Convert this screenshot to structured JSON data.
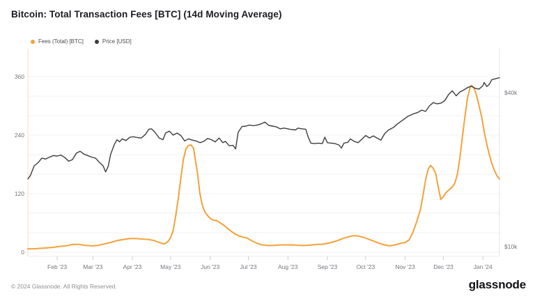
{
  "title": "Bitcoin: Total Transaction Fees [BTC] (14d Moving Average)",
  "legend": [
    {
      "label": "Fees (Total) [BTC]",
      "color": "#f4a139"
    },
    {
      "label": "Price [USD]",
      "color": "#3c3c3c"
    }
  ],
  "footer": {
    "copyright": "© 2024 Glassnode. All Rights Reserved.",
    "logo": "glassnode"
  },
  "chart_data": {
    "type": "line",
    "title": "Bitcoin: Total Transaction Fees [BTC] (14d Moving Average)",
    "grid": "horizontal-only",
    "legend_position": "top-left",
    "x_range": [
      "2023-01-09",
      "2024-01-14"
    ],
    "x_ticks": [
      {
        "label": "Feb '23",
        "date": "2023-02-01"
      },
      {
        "label": "Mar '23",
        "date": "2023-03-01"
      },
      {
        "label": "Apr '23",
        "date": "2023-04-01"
      },
      {
        "label": "May '23",
        "date": "2023-05-01"
      },
      {
        "label": "Jun '23",
        "date": "2023-06-01"
      },
      {
        "label": "Jul '23",
        "date": "2023-07-01"
      },
      {
        "label": "Aug '23",
        "date": "2023-08-01"
      },
      {
        "label": "Sep '23",
        "date": "2023-09-01"
      },
      {
        "label": "Oct '23",
        "date": "2023-10-01"
      },
      {
        "label": "Nov '23",
        "date": "2023-11-01"
      },
      {
        "label": "Dec '23",
        "date": "2023-12-01"
      },
      {
        "label": "Jan '24",
        "date": "2024-01-01"
      }
    ],
    "left_axis": {
      "series": "Fees (Total) [BTC]",
      "scale": "linear",
      "range": [
        0,
        420
      ],
      "ticks": [
        0,
        120,
        240,
        360
      ],
      "gridline_step": 40,
      "max_gridline": 360
    },
    "right_axis": {
      "series": "Price [USD]",
      "scale": "log",
      "ticks": [
        {
          "label": "$10k",
          "value": 10000
        },
        {
          "label": "$40k",
          "value": 40000
        }
      ]
    },
    "series": [
      {
        "id": "fees",
        "name": "Fees (Total) [BTC]",
        "color": "#f4a139",
        "axis": "left",
        "points": [
          [
            "2023-01-09",
            7
          ],
          [
            "2023-01-14",
            7
          ],
          [
            "2023-01-19",
            8
          ],
          [
            "2023-01-24",
            9
          ],
          [
            "2023-01-29",
            10
          ],
          [
            "2023-02-03",
            12
          ],
          [
            "2023-02-08",
            13
          ],
          [
            "2023-02-13",
            16
          ],
          [
            "2023-02-18",
            16
          ],
          [
            "2023-02-23",
            14
          ],
          [
            "2023-02-28",
            13
          ],
          [
            "2023-03-05",
            14
          ],
          [
            "2023-03-10",
            17
          ],
          [
            "2023-03-15",
            20
          ],
          [
            "2023-03-20",
            24
          ],
          [
            "2023-03-25",
            26
          ],
          [
            "2023-03-30",
            28
          ],
          [
            "2023-04-04",
            28
          ],
          [
            "2023-04-09",
            27
          ],
          [
            "2023-04-14",
            26
          ],
          [
            "2023-04-18",
            24
          ],
          [
            "2023-04-22",
            20
          ],
          [
            "2023-04-26",
            17
          ],
          [
            "2023-04-29",
            22
          ],
          [
            "2023-05-01",
            30
          ],
          [
            "2023-05-03",
            45
          ],
          [
            "2023-05-05",
            74
          ],
          [
            "2023-05-07",
            110
          ],
          [
            "2023-05-09",
            152
          ],
          [
            "2023-05-11",
            190
          ],
          [
            "2023-05-13",
            212
          ],
          [
            "2023-05-15",
            219
          ],
          [
            "2023-05-17",
            220
          ],
          [
            "2023-05-19",
            213
          ],
          [
            "2023-05-20",
            196
          ],
          [
            "2023-05-22",
            163
          ],
          [
            "2023-05-24",
            120
          ],
          [
            "2023-05-26",
            95
          ],
          [
            "2023-05-28",
            82
          ],
          [
            "2023-05-31",
            72
          ],
          [
            "2023-06-03",
            66
          ],
          [
            "2023-06-06",
            65
          ],
          [
            "2023-06-09",
            60
          ],
          [
            "2023-06-12",
            55
          ],
          [
            "2023-06-15",
            48
          ],
          [
            "2023-06-18",
            42
          ],
          [
            "2023-06-21",
            37
          ],
          [
            "2023-06-24",
            33
          ],
          [
            "2023-06-27",
            31
          ],
          [
            "2023-06-30",
            29
          ],
          [
            "2023-07-04",
            23
          ],
          [
            "2023-07-08",
            18
          ],
          [
            "2023-07-12",
            15
          ],
          [
            "2023-07-16",
            14
          ],
          [
            "2023-07-21",
            14
          ],
          [
            "2023-07-26",
            15
          ],
          [
            "2023-07-31",
            15
          ],
          [
            "2023-08-05",
            15
          ],
          [
            "2023-08-10",
            14
          ],
          [
            "2023-08-15",
            14
          ],
          [
            "2023-08-20",
            15
          ],
          [
            "2023-08-25",
            16
          ],
          [
            "2023-08-30",
            17
          ],
          [
            "2023-09-04",
            20
          ],
          [
            "2023-09-09",
            24
          ],
          [
            "2023-09-14",
            29
          ],
          [
            "2023-09-18",
            32
          ],
          [
            "2023-09-22",
            34
          ],
          [
            "2023-09-26",
            33
          ],
          [
            "2023-09-30",
            30
          ],
          [
            "2023-10-04",
            26
          ],
          [
            "2023-10-08",
            22
          ],
          [
            "2023-10-12",
            18
          ],
          [
            "2023-10-16",
            15
          ],
          [
            "2023-10-20",
            13
          ],
          [
            "2023-10-24",
            15
          ],
          [
            "2023-10-28",
            18
          ],
          [
            "2023-11-01",
            20
          ],
          [
            "2023-11-04",
            25
          ],
          [
            "2023-11-07",
            40
          ],
          [
            "2023-11-10",
            62
          ],
          [
            "2023-11-13",
            88
          ],
          [
            "2023-11-15",
            116
          ],
          [
            "2023-11-17",
            148
          ],
          [
            "2023-11-19",
            170
          ],
          [
            "2023-11-21",
            178
          ],
          [
            "2023-11-23",
            172
          ],
          [
            "2023-11-25",
            161
          ],
          [
            "2023-11-27",
            133
          ],
          [
            "2023-11-29",
            108
          ],
          [
            "2023-12-01",
            114
          ],
          [
            "2023-12-03",
            122
          ],
          [
            "2023-12-05",
            127
          ],
          [
            "2023-12-08",
            134
          ],
          [
            "2023-12-10",
            142
          ],
          [
            "2023-12-12",
            160
          ],
          [
            "2023-12-14",
            195
          ],
          [
            "2023-12-16",
            238
          ],
          [
            "2023-12-18",
            280
          ],
          [
            "2023-12-20",
            318
          ],
          [
            "2023-12-22",
            338
          ],
          [
            "2023-12-23",
            342
          ],
          [
            "2023-12-25",
            337
          ],
          [
            "2023-12-27",
            322
          ],
          [
            "2023-12-29",
            300
          ],
          [
            "2023-12-31",
            278
          ],
          [
            "2024-01-02",
            248
          ],
          [
            "2024-01-04",
            222
          ],
          [
            "2024-01-06",
            200
          ],
          [
            "2024-01-08",
            182
          ],
          [
            "2024-01-10",
            168
          ],
          [
            "2024-01-12",
            157
          ],
          [
            "2024-01-14",
            150
          ]
        ]
      },
      {
        "id": "price",
        "name": "Price [USD]",
        "color": "#3c3c3c",
        "axis": "right",
        "points": [
          [
            "2023-01-09",
            18400
          ],
          [
            "2023-01-11",
            19000
          ],
          [
            "2023-01-14",
            20700
          ],
          [
            "2023-01-17",
            21300
          ],
          [
            "2023-01-20",
            22200
          ],
          [
            "2023-01-23",
            22000
          ],
          [
            "2023-01-26",
            22400
          ],
          [
            "2023-01-29",
            22700
          ],
          [
            "2023-02-01",
            22600
          ],
          [
            "2023-02-04",
            22800
          ],
          [
            "2023-02-07",
            22300
          ],
          [
            "2023-02-10",
            21600
          ],
          [
            "2023-02-13",
            21900
          ],
          [
            "2023-02-16",
            23200
          ],
          [
            "2023-02-19",
            23600
          ],
          [
            "2023-02-22",
            23000
          ],
          [
            "2023-02-25",
            22700
          ],
          [
            "2023-02-28",
            22400
          ],
          [
            "2023-03-03",
            22200
          ],
          [
            "2023-03-06",
            21400
          ],
          [
            "2023-03-09",
            20700
          ],
          [
            "2023-03-11",
            19600
          ],
          [
            "2023-03-13",
            20600
          ],
          [
            "2023-03-15",
            23000
          ],
          [
            "2023-03-18",
            25200
          ],
          [
            "2023-03-20",
            26200
          ],
          [
            "2023-03-22",
            25700
          ],
          [
            "2023-03-24",
            26400
          ],
          [
            "2023-03-27",
            26000
          ],
          [
            "2023-03-30",
            26800
          ],
          [
            "2023-04-02",
            26900
          ],
          [
            "2023-04-05",
            26700
          ],
          [
            "2023-04-08",
            26600
          ],
          [
            "2023-04-11",
            27400
          ],
          [
            "2023-04-14",
            28800
          ],
          [
            "2023-04-16",
            28900
          ],
          [
            "2023-04-19",
            27900
          ],
          [
            "2023-04-22",
            26600
          ],
          [
            "2023-04-25",
            26200
          ],
          [
            "2023-04-27",
            27800
          ],
          [
            "2023-04-30",
            28300
          ],
          [
            "2023-05-03",
            27300
          ],
          [
            "2023-05-06",
            27800
          ],
          [
            "2023-05-09",
            27200
          ],
          [
            "2023-05-12",
            25900
          ],
          [
            "2023-05-15",
            26400
          ],
          [
            "2023-05-18",
            26100
          ],
          [
            "2023-05-21",
            25900
          ],
          [
            "2023-05-24",
            25500
          ],
          [
            "2023-05-27",
            25800
          ],
          [
            "2023-05-30",
            26500
          ],
          [
            "2023-06-02",
            26200
          ],
          [
            "2023-06-05",
            25700
          ],
          [
            "2023-06-08",
            26600
          ],
          [
            "2023-06-11",
            25500
          ],
          [
            "2023-06-13",
            25800
          ],
          [
            "2023-06-16",
            24800
          ],
          [
            "2023-06-19",
            24900
          ],
          [
            "2023-06-21",
            24100
          ],
          [
            "2023-06-23",
            28000
          ],
          [
            "2023-06-26",
            29500
          ],
          [
            "2023-06-29",
            29600
          ],
          [
            "2023-07-02",
            29900
          ],
          [
            "2023-07-05",
            29700
          ],
          [
            "2023-07-08",
            29900
          ],
          [
            "2023-07-11",
            30200
          ],
          [
            "2023-07-14",
            30700
          ],
          [
            "2023-07-17",
            29800
          ],
          [
            "2023-07-20",
            29600
          ],
          [
            "2023-07-23",
            29400
          ],
          [
            "2023-07-26",
            28900
          ],
          [
            "2023-07-29",
            29100
          ],
          [
            "2023-08-01",
            28900
          ],
          [
            "2023-08-04",
            28700
          ],
          [
            "2023-08-07",
            28600
          ],
          [
            "2023-08-09",
            29100
          ],
          [
            "2023-08-12",
            28900
          ],
          [
            "2023-08-15",
            28800
          ],
          [
            "2023-08-17",
            26800
          ],
          [
            "2023-08-19",
            25400
          ],
          [
            "2023-08-22",
            25300
          ],
          [
            "2023-08-25",
            25400
          ],
          [
            "2023-08-28",
            25300
          ],
          [
            "2023-08-30",
            26800
          ],
          [
            "2023-09-01",
            25500
          ],
          [
            "2023-09-04",
            25400
          ],
          [
            "2023-09-07",
            25300
          ],
          [
            "2023-09-10",
            25000
          ],
          [
            "2023-09-12",
            24300
          ],
          [
            "2023-09-14",
            25400
          ],
          [
            "2023-09-17",
            25600
          ],
          [
            "2023-09-19",
            26400
          ],
          [
            "2023-09-22",
            25800
          ],
          [
            "2023-09-25",
            25500
          ],
          [
            "2023-09-28",
            26300
          ],
          [
            "2023-10-01",
            27200
          ],
          [
            "2023-10-04",
            26600
          ],
          [
            "2023-10-07",
            27100
          ],
          [
            "2023-10-10",
            26600
          ],
          [
            "2023-10-13",
            26100
          ],
          [
            "2023-10-16",
            27700
          ],
          [
            "2023-10-19",
            28600
          ],
          [
            "2023-10-23",
            29300
          ],
          [
            "2023-10-26",
            30200
          ],
          [
            "2023-10-30",
            31200
          ],
          [
            "2023-11-03",
            32300
          ],
          [
            "2023-11-07",
            33000
          ],
          [
            "2023-11-11",
            33500
          ],
          [
            "2023-11-14",
            34200
          ],
          [
            "2023-11-17",
            33800
          ],
          [
            "2023-11-20",
            35500
          ],
          [
            "2023-11-23",
            36600
          ],
          [
            "2023-11-26",
            36200
          ],
          [
            "2023-11-29",
            36400
          ],
          [
            "2023-12-02",
            37200
          ],
          [
            "2023-12-05",
            39300
          ],
          [
            "2023-12-08",
            40700
          ],
          [
            "2023-12-11",
            38900
          ],
          [
            "2023-12-14",
            40300
          ],
          [
            "2023-12-17",
            41000
          ],
          [
            "2023-12-20",
            41900
          ],
          [
            "2023-12-23",
            42400
          ],
          [
            "2023-12-26",
            41600
          ],
          [
            "2023-12-29",
            41300
          ],
          [
            "2024-01-01",
            42600
          ],
          [
            "2024-01-02",
            43900
          ],
          [
            "2024-01-04",
            42300
          ],
          [
            "2024-01-06",
            43100
          ],
          [
            "2024-01-08",
            45000
          ],
          [
            "2024-01-11",
            45400
          ],
          [
            "2024-01-14",
            45800
          ]
        ]
      }
    ]
  }
}
